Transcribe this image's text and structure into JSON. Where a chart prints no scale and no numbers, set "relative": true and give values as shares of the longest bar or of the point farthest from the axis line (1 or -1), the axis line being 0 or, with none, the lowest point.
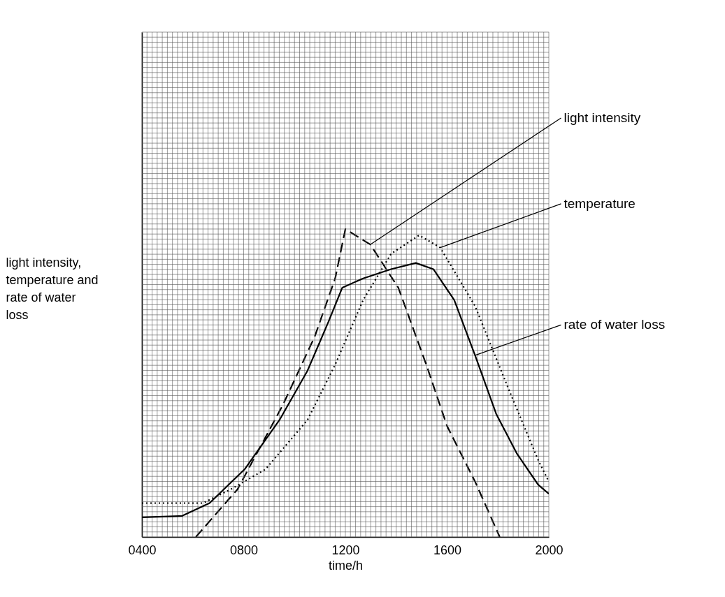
{
  "chart_data": {
    "type": "line",
    "relative": true,
    "xlabel": "time/h",
    "ylabel": "light intensity, temperature and rate of water loss",
    "xlim": [
      400,
      2000
    ],
    "xticks": [
      {
        "value": 400,
        "label": "0400"
      },
      {
        "value": 800,
        "label": "0800"
      },
      {
        "value": 1200,
        "label": "1200"
      },
      {
        "value": 1600,
        "label": "1600"
      },
      {
        "value": 2000,
        "label": "2000"
      }
    ],
    "grid": true,
    "series": [
      {
        "name": "light intensity",
        "color": "#000000",
        "line_style": "dashed",
        "x": [
          612,
          776,
          955,
          1079,
          1160,
          1200,
          1298,
          1408,
          1518,
          1600,
          1710,
          1807
        ],
        "values": [
          0,
          0.155,
          0.43,
          0.65,
          0.84,
          1.0,
          0.95,
          0.81,
          0.56,
          0.36,
          0.18,
          0
        ]
      },
      {
        "name": "temperature",
        "color": "#000000",
        "line_style": "dotted",
        "x": [
          400,
          640,
          750,
          886,
          1051,
          1160,
          1270,
          1380,
          1490,
          1573,
          1710,
          1847,
          1958,
          2000
        ],
        "values": [
          0.11,
          0.11,
          0.155,
          0.22,
          0.38,
          0.56,
          0.77,
          0.92,
          0.98,
          0.94,
          0.75,
          0.47,
          0.25,
          0.18
        ]
      },
      {
        "name": "rate of water loss",
        "color": "#000000",
        "line_style": "solid",
        "x": [
          400,
          557,
          666,
          804,
          941,
          1051,
          1134,
          1188,
          1270,
          1380,
          1477,
          1546,
          1628,
          1710,
          1793,
          1875,
          1958,
          2000
        ],
        "values": [
          0.064,
          0.068,
          0.11,
          0.22,
          0.38,
          0.54,
          0.7,
          0.81,
          0.84,
          0.87,
          0.89,
          0.87,
          0.77,
          0.59,
          0.4,
          0.27,
          0.17,
          0.14
        ]
      }
    ]
  }
}
